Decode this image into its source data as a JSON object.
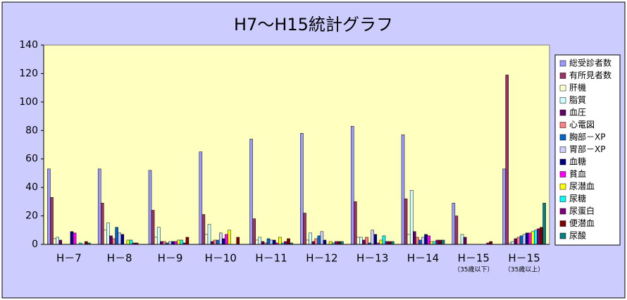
{
  "chart_data": {
    "type": "bar",
    "title": "H7～H15統計グラフ",
    "categories": [
      "H－7",
      "H－8",
      "H－9",
      "H－10",
      "H－11",
      "H－12",
      "H－13",
      "H－14",
      "H－15",
      "H－15"
    ],
    "category_notes": [
      null,
      null,
      null,
      null,
      null,
      null,
      null,
      null,
      "（35歳以下）",
      "（35歳以上）"
    ],
    "ylim": [
      0,
      140
    ],
    "yticks": [
      0,
      20,
      40,
      60,
      80,
      100,
      120,
      140
    ],
    "grid": false,
    "legend": "right",
    "series": [
      {
        "name": "総受診者数",
        "color": "#9999ff",
        "values": [
          53,
          53,
          52,
          65,
          74,
          78,
          83,
          77,
          29,
          53
        ]
      },
      {
        "name": "有所見者数",
        "color": "#993366",
        "values": [
          33,
          29,
          24,
          21,
          18,
          22,
          30,
          32,
          20,
          119
        ]
      },
      {
        "name": "肝機",
        "color": "#ffffcc",
        "values": [
          4,
          10,
          5,
          7,
          3,
          3,
          5,
          7,
          0,
          1
        ]
      },
      {
        "name": "脂質",
        "color": "#ccffff",
        "values": [
          5,
          15,
          12,
          14,
          5,
          8,
          5,
          38,
          7,
          2
        ]
      },
      {
        "name": "血圧",
        "color": "#660066",
        "values": [
          3,
          6,
          2,
          2,
          2,
          2,
          3,
          9,
          5,
          4
        ]
      },
      {
        "name": "心電図",
        "color": "#ff8080",
        "values": [
          0,
          4,
          2,
          3,
          1,
          4,
          5,
          5,
          0,
          5
        ]
      },
      {
        "name": "胸部－XP",
        "color": "#0066cc",
        "values": [
          0,
          12,
          1,
          3,
          4,
          6,
          1,
          3,
          0,
          6
        ]
      },
      {
        "name": "胃部－XP",
        "color": "#ccccff",
        "values": [
          0,
          8,
          2,
          8,
          3,
          9,
          10,
          5,
          0,
          7
        ]
      },
      {
        "name": "血糖",
        "color": "#000080",
        "values": [
          9,
          7,
          2,
          4,
          3,
          3,
          7,
          7,
          0,
          8
        ]
      },
      {
        "name": "貧血",
        "color": "#ff00ff",
        "values": [
          8,
          0,
          2,
          7,
          1,
          0,
          1,
          6,
          0,
          8
        ]
      },
      {
        "name": "尿潜血",
        "color": "#ffff00",
        "values": [
          0,
          3,
          3,
          10,
          5,
          2,
          3,
          2,
          0,
          9
        ]
      },
      {
        "name": "尿糖",
        "color": "#00ffff",
        "values": [
          1,
          3,
          3,
          0,
          1,
          1,
          6,
          2,
          0,
          10
        ]
      },
      {
        "name": "尿蛋白",
        "color": "#800080",
        "values": [
          0,
          1,
          1,
          0,
          2,
          2,
          2,
          3,
          1,
          11
        ]
      },
      {
        "name": "便潜血",
        "color": "#800000",
        "values": [
          2,
          1,
          5,
          5,
          4,
          2,
          2,
          3,
          2,
          12
        ]
      },
      {
        "name": "尿酸",
        "color": "#008080",
        "values": [
          1,
          0,
          0,
          0,
          1,
          2,
          2,
          3,
          0,
          29
        ]
      }
    ]
  }
}
